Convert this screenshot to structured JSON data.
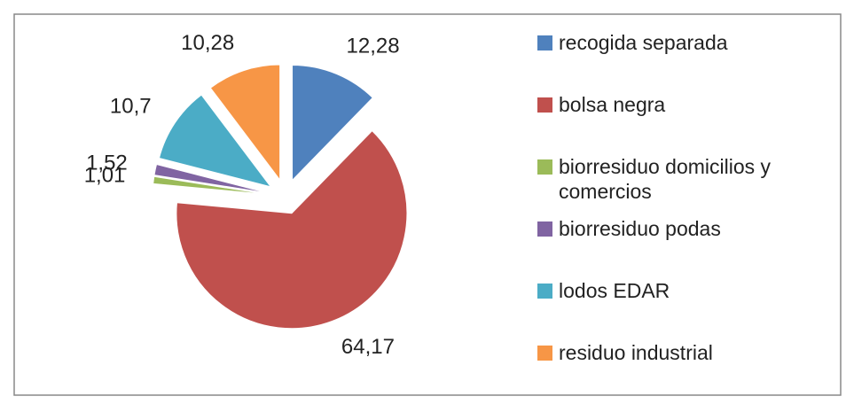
{
  "chart_data": {
    "type": "pie",
    "categories": [
      "recogida separada",
      "bolsa negra",
      "biorresiduo domicilios y comercios",
      "biorresiduo podas",
      "lodos EDAR",
      "residuo industrial"
    ],
    "values": [
      12.28,
      64.17,
      1.01,
      1.52,
      10.7,
      10.28
    ],
    "value_labels": [
      "12,28",
      "64,17",
      "1,01",
      "1,52",
      "10,7",
      "10,28"
    ],
    "colors": [
      "#4f81bd",
      "#c0504d",
      "#9bbb59",
      "#8064a2",
      "#4bacc6",
      "#f79646"
    ],
    "legend": "right"
  }
}
